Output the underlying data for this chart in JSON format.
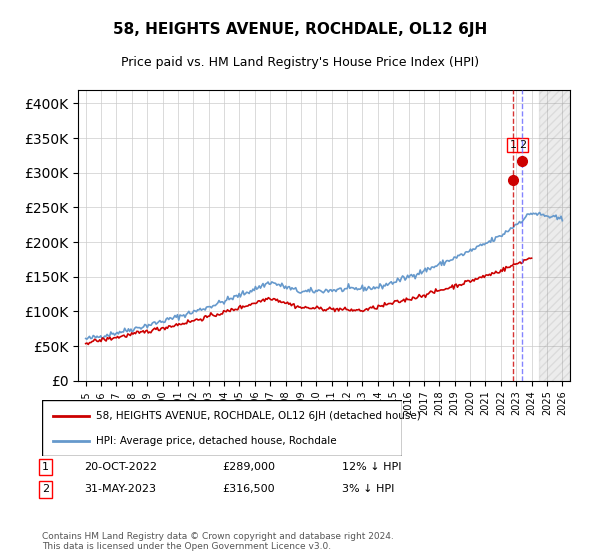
{
  "title": "58, HEIGHTS AVENUE, ROCHDALE, OL12 6JH",
  "subtitle": "Price paid vs. HM Land Registry's House Price Index (HPI)",
  "hpi_label": "HPI: Average price, detached house, Rochdale",
  "price_label": "58, HEIGHTS AVENUE, ROCHDALE, OL12 6JH (detached house)",
  "legend_entry1": "20-OCT-2022",
  "legend_entry1_price": "£289,000",
  "legend_entry1_hpi": "12% ↓ HPI",
  "legend_entry2": "31-MAY-2023",
  "legend_entry2_price": "£316,500",
  "legend_entry2_hpi": "3% ↓ HPI",
  "footer": "Contains HM Land Registry data © Crown copyright and database right 2024.\nThis data is licensed under the Open Government Licence v3.0.",
  "hpi_color": "#6699cc",
  "price_color": "#cc0000",
  "marker1_color": "#cc0000",
  "marker2_color": "#cc0000",
  "vline1_color": "#cc0000",
  "vline2_color": "#6666ff",
  "background_color": "#ffffff",
  "hatch_color": "#dddddd",
  "ylim": [
    0,
    420000
  ],
  "yticks": [
    0,
    50000,
    100000,
    150000,
    200000,
    250000,
    300000,
    350000,
    400000
  ],
  "xlabel_start_year": 1995,
  "xlabel_end_year": 2026
}
